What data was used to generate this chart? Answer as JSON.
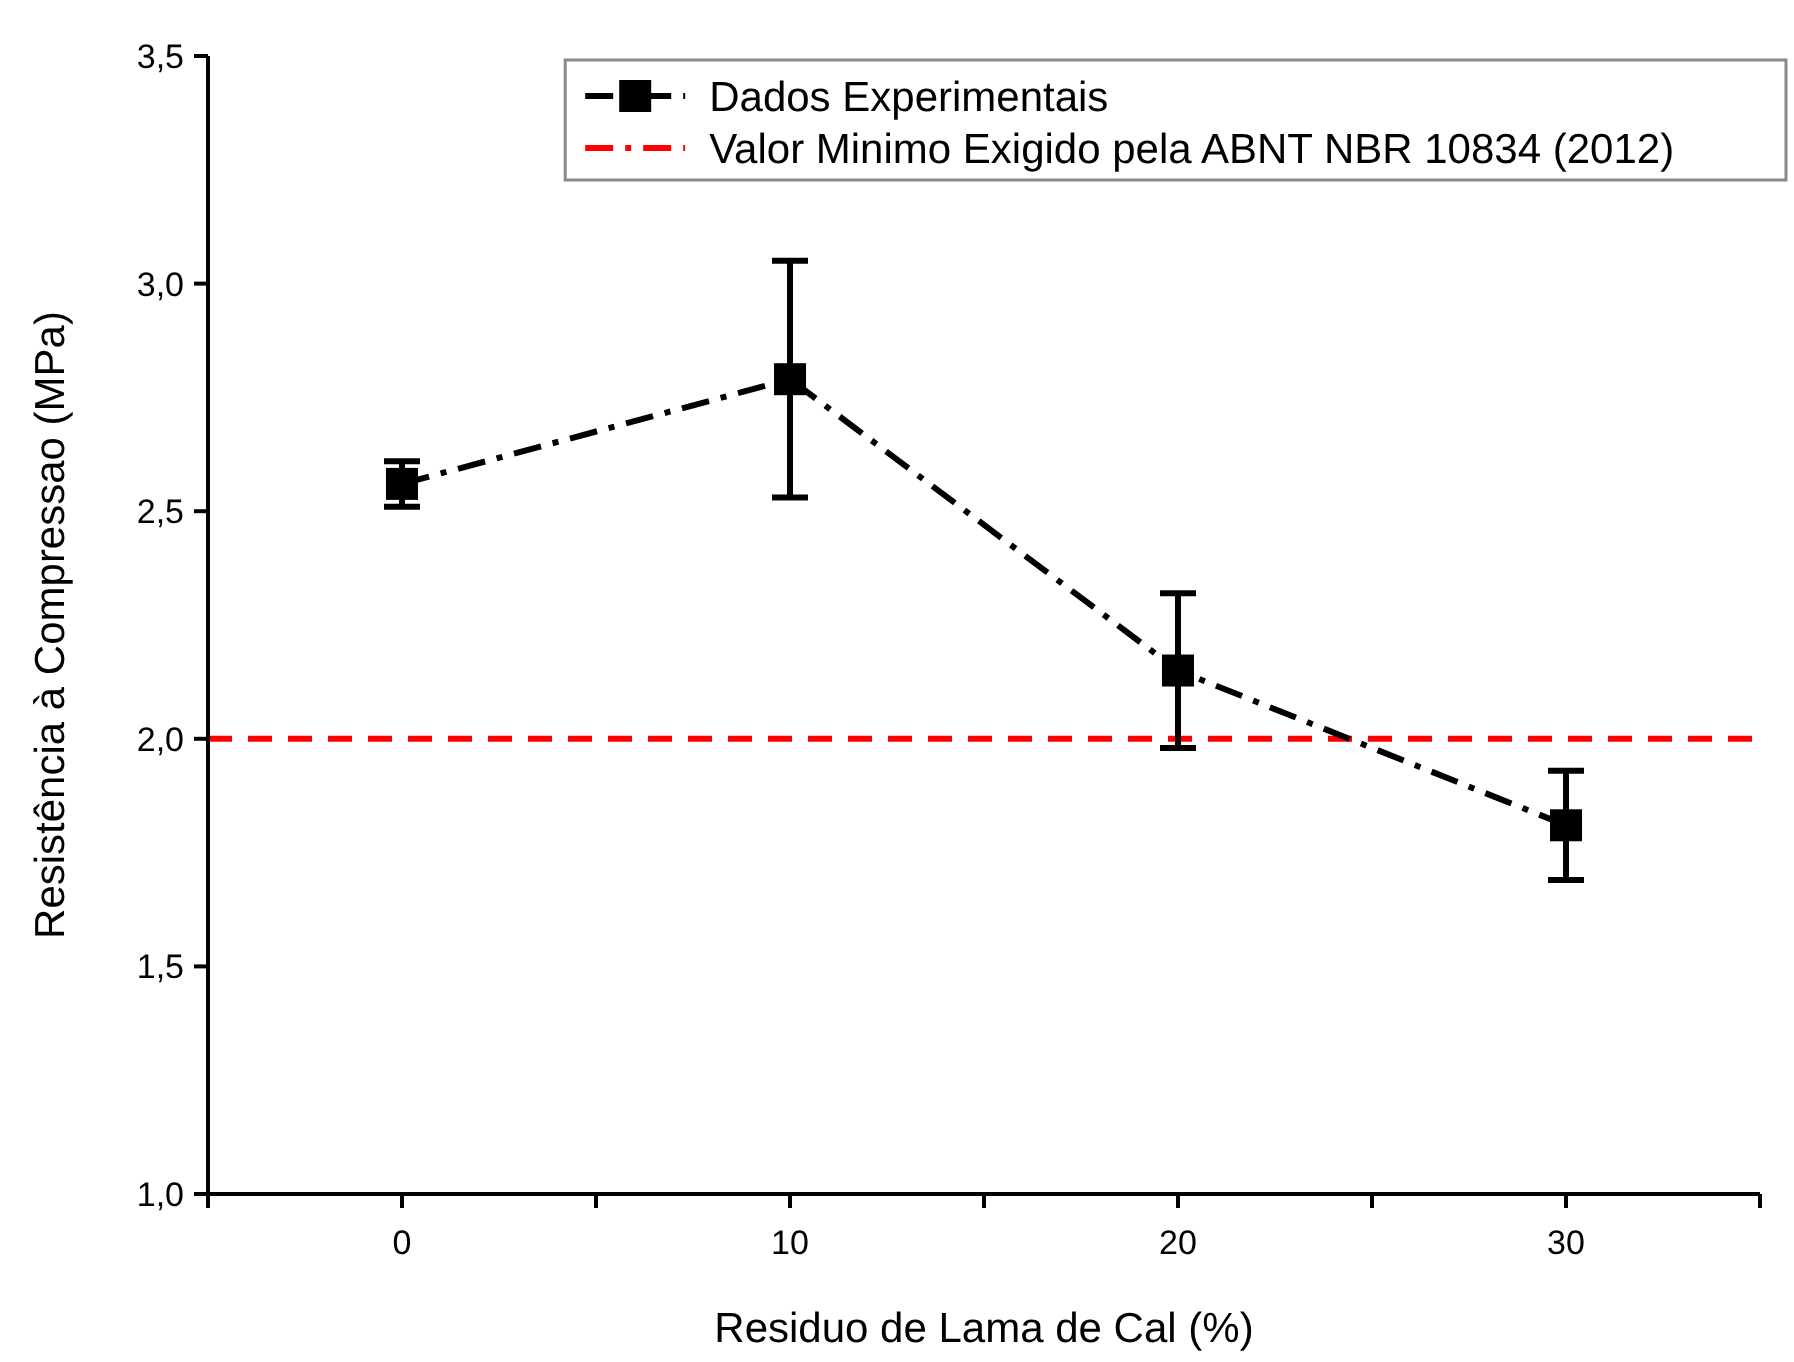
{
  "chart_data": {
    "type": "line",
    "xlabel": "Residuo de Lama de Cal (%)",
    "ylabel": "Resistência à Compressao (MPa)",
    "x": [
      0,
      10,
      20,
      30
    ],
    "series": [
      {
        "name": "Dados Experimentais",
        "color": "#000000",
        "values": [
          2.56,
          2.79,
          2.15,
          1.81
        ],
        "errors": [
          0.05,
          0.26,
          0.17,
          0.12
        ]
      }
    ],
    "ref_lines": [
      {
        "axis": "y",
        "value": 2.0,
        "label": "Valor Minimo Exigido pela ABNT NBR 10834 (2012)",
        "color": "#ff0000",
        "line_style": "dashed"
      }
    ],
    "xlim": [
      -5,
      35
    ],
    "xticks": [
      {
        "value": -5,
        "label": null
      },
      0,
      {
        "value": 5,
        "label": null
      },
      10,
      {
        "value": 15,
        "label": null
      },
      20,
      {
        "value": 25,
        "label": null
      },
      30,
      {
        "value": 35,
        "label": null
      }
    ],
    "ylim": [
      1.0,
      3.5
    ],
    "yticks": [
      {
        "value": 1.0,
        "label": "1,0"
      },
      {
        "value": 1.5,
        "label": "1,5"
      },
      {
        "value": 2.0,
        "label": "2,0"
      },
      {
        "value": 2.5,
        "label": "2,5"
      },
      {
        "value": 3.0,
        "label": "3,0"
      },
      {
        "value": 3.5,
        "label": "3,5"
      }
    ],
    "marker": "square",
    "line_style": "dashed",
    "legend": "top right",
    "grid": false
  }
}
